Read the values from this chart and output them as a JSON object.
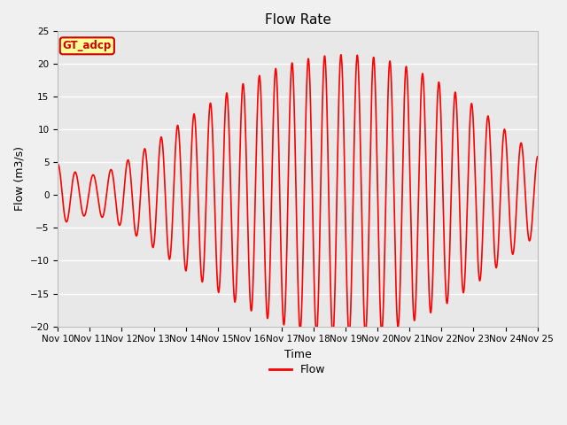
{
  "title": "Flow Rate",
  "xlabel": "Time",
  "ylabel": "Flow (m3/s)",
  "ylim": [
    -20,
    25
  ],
  "xlim": [
    0,
    15
  ],
  "yticks": [
    -20,
    -15,
    -10,
    -5,
    0,
    5,
    10,
    15,
    20,
    25
  ],
  "xtick_labels": [
    "Nov 10",
    "Nov 11",
    "Nov 12",
    "Nov 13",
    "Nov 14",
    "Nov 15",
    "Nov 16",
    "Nov 17",
    "Nov 18",
    "Nov 19",
    "Nov 20",
    "Nov 21",
    "Nov 22",
    "Nov 23",
    "Nov 24",
    "Nov 25"
  ],
  "line_color": "#ff0000",
  "line_width": 1.2,
  "bg_color": "#e8e8e8",
  "outer_bg": "#f0f0f0",
  "grid_color": "#ffffff",
  "legend_label": "Flow",
  "annotation_text": "GT_adcp",
  "annotation_bg": "#ffff99",
  "annotation_border": "#cc0000",
  "title_fontsize": 11,
  "label_fontsize": 9,
  "tick_fontsize": 7.5
}
